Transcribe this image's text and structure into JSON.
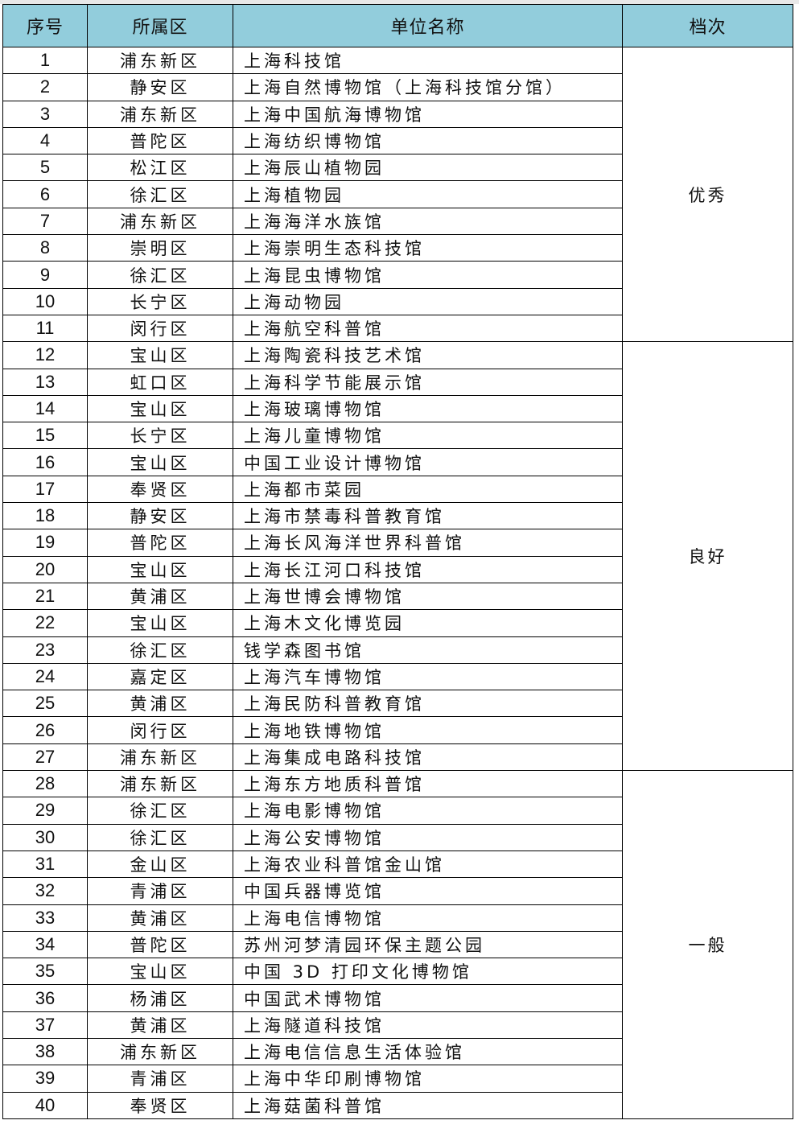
{
  "header": {
    "index": "序号",
    "district": "所属区",
    "name": "单位名称",
    "tier": "档次"
  },
  "tiers": [
    {
      "label": "优秀",
      "count": 11
    },
    {
      "label": "良好",
      "count": 16
    },
    {
      "label": "一般",
      "count": 13
    }
  ],
  "rows": [
    {
      "n": "1",
      "d": "浦东新区",
      "u": "上海科技馆"
    },
    {
      "n": "2",
      "d": "静安区",
      "u": "上海自然博物馆（上海科技馆分馆）"
    },
    {
      "n": "3",
      "d": "浦东新区",
      "u": "上海中国航海博物馆"
    },
    {
      "n": "4",
      "d": "普陀区",
      "u": "上海纺织博物馆"
    },
    {
      "n": "5",
      "d": "松江区",
      "u": "上海辰山植物园"
    },
    {
      "n": "6",
      "d": "徐汇区",
      "u": "上海植物园"
    },
    {
      "n": "7",
      "d": "浦东新区",
      "u": "上海海洋水族馆"
    },
    {
      "n": "8",
      "d": "崇明区",
      "u": "上海崇明生态科技馆"
    },
    {
      "n": "9",
      "d": "徐汇区",
      "u": "上海昆虫博物馆"
    },
    {
      "n": "10",
      "d": "长宁区",
      "u": "上海动物园"
    },
    {
      "n": "11",
      "d": "闵行区",
      "u": "上海航空科普馆"
    },
    {
      "n": "12",
      "d": "宝山区",
      "u": "上海陶瓷科技艺术馆"
    },
    {
      "n": "13",
      "d": "虹口区",
      "u": "上海科学节能展示馆"
    },
    {
      "n": "14",
      "d": "宝山区",
      "u": "上海玻璃博物馆"
    },
    {
      "n": "15",
      "d": "长宁区",
      "u": "上海儿童博物馆"
    },
    {
      "n": "16",
      "d": "宝山区",
      "u": "中国工业设计博物馆"
    },
    {
      "n": "17",
      "d": "奉贤区",
      "u": "上海都市菜园"
    },
    {
      "n": "18",
      "d": "静安区",
      "u": "上海市禁毒科普教育馆"
    },
    {
      "n": "19",
      "d": "普陀区",
      "u": "上海长风海洋世界科普馆"
    },
    {
      "n": "20",
      "d": "宝山区",
      "u": "上海长江河口科技馆"
    },
    {
      "n": "21",
      "d": "黄浦区",
      "u": "上海世博会博物馆"
    },
    {
      "n": "22",
      "d": "宝山区",
      "u": "上海木文化博览园"
    },
    {
      "n": "23",
      "d": "徐汇区",
      "u": "钱学森图书馆"
    },
    {
      "n": "24",
      "d": "嘉定区",
      "u": "上海汽车博物馆"
    },
    {
      "n": "25",
      "d": "黄浦区",
      "u": "上海民防科普教育馆"
    },
    {
      "n": "26",
      "d": "闵行区",
      "u": "上海地铁博物馆"
    },
    {
      "n": "27",
      "d": "浦东新区",
      "u": "上海集成电路科技馆"
    },
    {
      "n": "28",
      "d": "浦东新区",
      "u": "上海东方地质科普馆"
    },
    {
      "n": "29",
      "d": "徐汇区",
      "u": "上海电影博物馆"
    },
    {
      "n": "30",
      "d": "徐汇区",
      "u": "上海公安博物馆"
    },
    {
      "n": "31",
      "d": "金山区",
      "u": "上海农业科普馆金山馆"
    },
    {
      "n": "32",
      "d": "青浦区",
      "u": "中国兵器博览馆"
    },
    {
      "n": "33",
      "d": "黄浦区",
      "u": "上海电信博物馆"
    },
    {
      "n": "34",
      "d": "普陀区",
      "u": "苏州河梦清园环保主题公园"
    },
    {
      "n": "35",
      "d": "宝山区",
      "u": "中国 3D 打印文化博物馆"
    },
    {
      "n": "36",
      "d": "杨浦区",
      "u": "中国武术博物馆"
    },
    {
      "n": "37",
      "d": "黄浦区",
      "u": "上海隧道科技馆"
    },
    {
      "n": "38",
      "d": "浦东新区",
      "u": "上海电信信息生活体验馆"
    },
    {
      "n": "39",
      "d": "青浦区",
      "u": "上海中华印刷博物馆"
    },
    {
      "n": "40",
      "d": "奉贤区",
      "u": "上海菇菌科普馆"
    }
  ]
}
